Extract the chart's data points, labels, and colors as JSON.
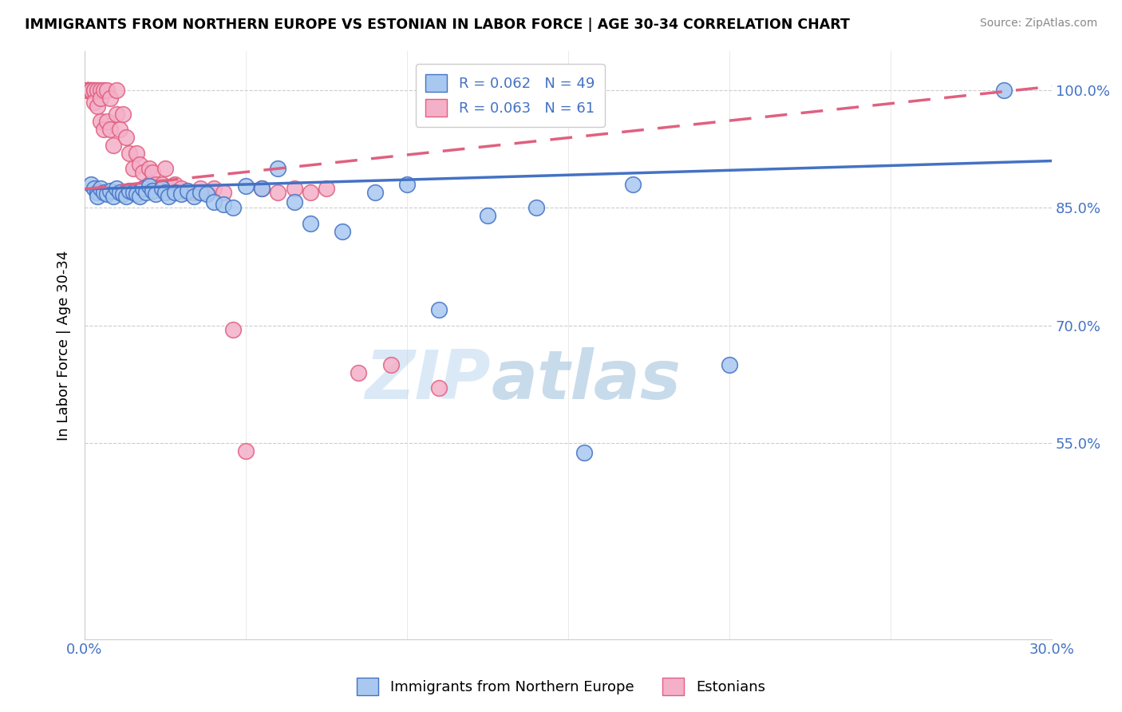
{
  "title": "IMMIGRANTS FROM NORTHERN EUROPE VS ESTONIAN IN LABOR FORCE | AGE 30-34 CORRELATION CHART",
  "source": "Source: ZipAtlas.com",
  "ylabel": "In Labor Force | Age 30-34",
  "xlim": [
    0.0,
    0.3
  ],
  "ylim": [
    0.3,
    1.05
  ],
  "yticks": [
    0.55,
    0.7,
    0.85,
    1.0
  ],
  "ytick_labels": [
    "55.0%",
    "70.0%",
    "85.0%",
    "100.0%"
  ],
  "blue_R": 0.062,
  "blue_N": 49,
  "pink_R": 0.063,
  "pink_N": 61,
  "blue_color": "#a8c8f0",
  "pink_color": "#f4b0c8",
  "blue_line_color": "#4472c4",
  "pink_line_color": "#e06080",
  "watermark_zip": "ZIP",
  "watermark_atlas": "atlas",
  "legend_label_blue": "Immigrants from Northern Europe",
  "legend_label_pink": "Estonians",
  "blue_trend": [
    0.0,
    0.3,
    0.874,
    0.91
  ],
  "pink_trend": [
    0.0,
    0.3,
    0.874,
    1.005
  ],
  "blue_scatter_x": [
    0.002,
    0.003,
    0.004,
    0.004,
    0.005,
    0.006,
    0.007,
    0.008,
    0.009,
    0.01,
    0.011,
    0.012,
    0.013,
    0.014,
    0.015,
    0.016,
    0.017,
    0.018,
    0.019,
    0.02,
    0.021,
    0.022,
    0.024,
    0.025,
    0.026,
    0.028,
    0.03,
    0.032,
    0.034,
    0.036,
    0.038,
    0.04,
    0.043,
    0.046,
    0.05,
    0.055,
    0.06,
    0.065,
    0.07,
    0.08,
    0.09,
    0.1,
    0.11,
    0.125,
    0.14,
    0.155,
    0.17,
    0.2,
    0.285
  ],
  "blue_scatter_y": [
    0.88,
    0.875,
    0.87,
    0.865,
    0.875,
    0.87,
    0.868,
    0.872,
    0.865,
    0.875,
    0.87,
    0.868,
    0.865,
    0.872,
    0.87,
    0.868,
    0.865,
    0.875,
    0.87,
    0.878,
    0.872,
    0.868,
    0.875,
    0.87,
    0.865,
    0.87,
    0.868,
    0.872,
    0.865,
    0.87,
    0.868,
    0.858,
    0.855,
    0.85,
    0.878,
    0.875,
    0.9,
    0.858,
    0.83,
    0.82,
    0.87,
    0.88,
    0.72,
    0.84,
    0.85,
    0.538,
    0.88,
    0.65,
    1.0
  ],
  "pink_scatter_x": [
    0.001,
    0.001,
    0.001,
    0.001,
    0.001,
    0.001,
    0.001,
    0.001,
    0.002,
    0.002,
    0.002,
    0.003,
    0.003,
    0.003,
    0.004,
    0.004,
    0.005,
    0.005,
    0.005,
    0.006,
    0.006,
    0.007,
    0.007,
    0.008,
    0.008,
    0.009,
    0.01,
    0.01,
    0.011,
    0.012,
    0.013,
    0.014,
    0.015,
    0.016,
    0.017,
    0.018,
    0.02,
    0.02,
    0.021,
    0.022,
    0.024,
    0.025,
    0.026,
    0.028,
    0.03,
    0.032,
    0.034,
    0.036,
    0.038,
    0.04,
    0.043,
    0.046,
    0.05,
    0.055,
    0.06,
    0.065,
    0.07,
    0.075,
    0.085,
    0.095,
    0.11
  ],
  "pink_scatter_y": [
    1.0,
    1.0,
    1.0,
    1.0,
    1.0,
    1.0,
    1.0,
    1.0,
    1.0,
    1.0,
    1.0,
    1.0,
    1.0,
    0.985,
    1.0,
    0.98,
    1.0,
    0.99,
    0.96,
    1.0,
    0.95,
    1.0,
    0.96,
    0.99,
    0.95,
    0.93,
    1.0,
    0.97,
    0.95,
    0.97,
    0.94,
    0.92,
    0.9,
    0.92,
    0.905,
    0.895,
    0.9,
    0.88,
    0.895,
    0.88,
    0.88,
    0.9,
    0.875,
    0.88,
    0.875,
    0.87,
    0.87,
    0.875,
    0.87,
    0.875,
    0.87,
    0.695,
    0.54,
    0.875,
    0.87,
    0.875,
    0.87,
    0.875,
    0.64,
    0.65,
    0.62
  ]
}
